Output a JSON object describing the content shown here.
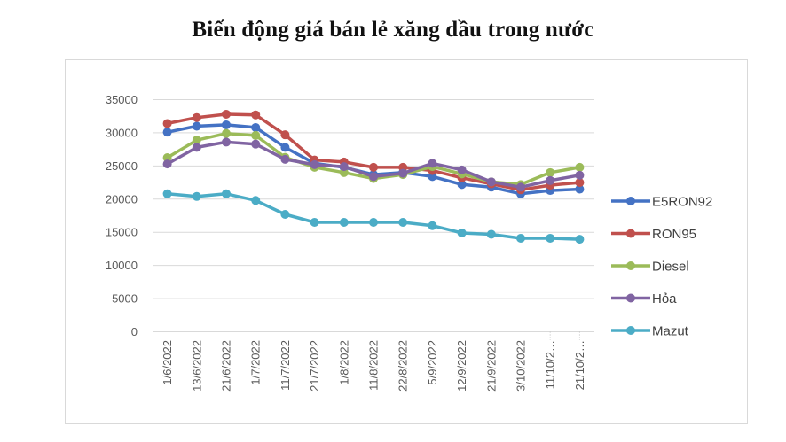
{
  "chart_data": {
    "type": "line",
    "title": "Biến động giá bán lẻ xăng dầu trong nước",
    "xlabel": "",
    "ylabel": "",
    "ylim": [
      0,
      35000
    ],
    "yticks": [
      0,
      5000,
      10000,
      15000,
      20000,
      25000,
      30000,
      35000
    ],
    "grid": true,
    "legend_position": "right",
    "categories": [
      "1/6/2022",
      "13/6/2022",
      "21/6/2022",
      "1/7/2022",
      "11/7/2022",
      "21/7/2022",
      "1/8/2022",
      "11/8/2022",
      "22/8/2022",
      "5/9/2022",
      "12/9/2022",
      "21/9/2022",
      "3/10/2022",
      "11/10/2…",
      "21/10/2…"
    ],
    "series": [
      {
        "name": "E5RON92",
        "color": "#4472C4",
        "values": [
          30100,
          31000,
          31200,
          30800,
          27800,
          25400,
          24800,
          23700,
          24000,
          23400,
          22200,
          21800,
          20800,
          21300,
          21500
        ]
      },
      {
        "name": "RON95",
        "color": "#C0504D",
        "values": [
          31400,
          32300,
          32800,
          32700,
          29700,
          25900,
          25600,
          24800,
          24800,
          24300,
          23200,
          22300,
          21400,
          22100,
          22500
        ]
      },
      {
        "name": "Diesel",
        "color": "#9BBB59",
        "values": [
          26250,
          28900,
          29900,
          29600,
          26300,
          24800,
          24000,
          23100,
          23700,
          24900,
          23800,
          22600,
          22200,
          24000,
          24800
        ]
      },
      {
        "name": "Hỏa",
        "color": "#8064A2",
        "values": [
          25300,
          27800,
          28600,
          28300,
          26000,
          25200,
          24900,
          23400,
          23900,
          25400,
          24400,
          22600,
          21800,
          22800,
          23600
        ]
      },
      {
        "name": "Mazut",
        "color": "#4BACC6",
        "values": [
          20800,
          20400,
          20800,
          19800,
          17700,
          16500,
          16500,
          16500,
          16500,
          16000,
          14900,
          14700,
          14100,
          14100,
          13950
        ]
      }
    ]
  },
  "colors": {
    "grid": "#d9d9d9",
    "axis_text": "#595959",
    "frame": "#d9d9d9"
  }
}
